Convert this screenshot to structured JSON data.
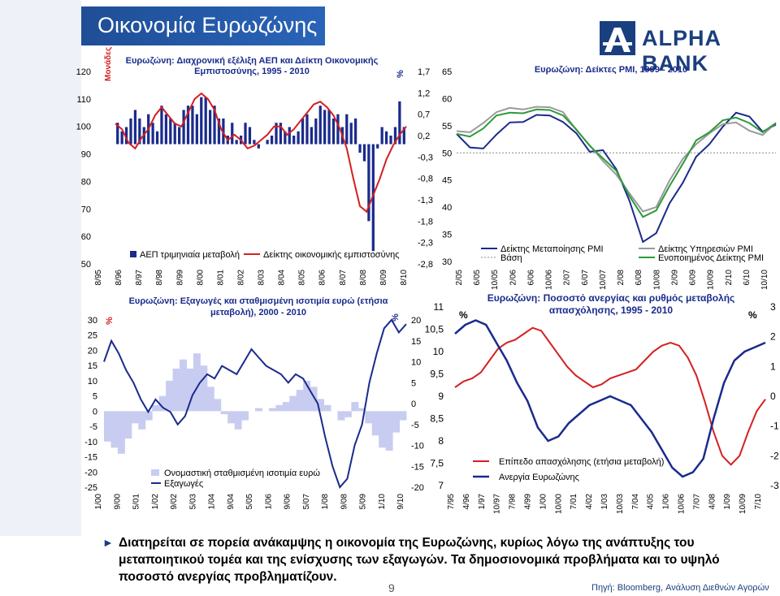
{
  "slide": {
    "title": "Οικονομία Ευρωζώνης",
    "brand": "ALPHA BANK",
    "conclusion": "Διατηρείται σε πορεία ανάκαμψης η οικονομία της Ευρωζώνης, κυρίως λόγω της ανάπτυξης του μεταποιητικού τομέα και της ενίσχυσης των εξαγωγών. Τα δημοσιονομικά προβλήματα και το υψηλό ποσοστό ανεργίας προβληματίζουν.",
    "page_number": "9",
    "source": "Πηγή: Bloomberg, Ανάλυση Διεθνών Αγορών",
    "colors": {
      "navy": "#1a2b8c",
      "red": "#d42020",
      "green": "#2e9a3a",
      "gray": "#9a9a9a",
      "title_blue": "#1f4e96"
    }
  },
  "chart_data": [
    {
      "id": "gdp",
      "type": "bar+line",
      "title": "Ευρωζώνη: Διαχρονική εξέλιξη ΑΕΠ και Δείκτη Οικονομικής Εμπιστοσύνης, 1995 - 2010",
      "left_unit": "Μονάδες",
      "right_unit": "%",
      "left_ticks": [
        "120",
        "110",
        "100",
        "90",
        "80",
        "70",
        "60",
        "50"
      ],
      "right_ticks": [
        "1,7",
        "1,2",
        "0,7",
        "0,2",
        "-0,3",
        "-0,8",
        "-1,3",
        "-1,8",
        "-2,3",
        "-2,8"
      ],
      "ylim_left": [
        50,
        120
      ],
      "ylim_right": [
        -2.8,
        1.7
      ],
      "x_labels": [
        "8/95",
        "8/96",
        "8/97",
        "8/98",
        "8/99",
        "8/00",
        "8/01",
        "8/02",
        "8/03",
        "8/04",
        "8/05",
        "8/06",
        "8/07",
        "8/08",
        "8/09",
        "8/10"
      ],
      "legend": [
        "ΑΕΠ τριμηνιαία μεταβολή",
        "Δείκτης οικονομικής εμπιστοσύνης"
      ],
      "gdp_qoq": [
        0.5,
        0.3,
        0.4,
        0.6,
        0.8,
        0.6,
        0.4,
        0.7,
        0.5,
        0.3,
        0.9,
        0.7,
        0.6,
        0.5,
        0.4,
        0.8,
        0.9,
        0.9,
        0.7,
        1.1,
        1.1,
        0.8,
        0.9,
        0.6,
        0.6,
        0.2,
        0.5,
        0.1,
        0.2,
        0.5,
        0.4,
        0.1,
        -0.1,
        0.0,
        0.1,
        0.2,
        0.5,
        0.5,
        0.3,
        0.4,
        0.2,
        0.3,
        0.6,
        0.7,
        0.4,
        0.6,
        0.9,
        0.8,
        0.8,
        0.6,
        0.7,
        0.4,
        0.7,
        0.5,
        0.6,
        -0.2,
        -0.4,
        -1.8,
        -2.5,
        -0.1,
        0.4,
        0.3,
        0.2,
        0.4,
        1.0,
        0.4
      ],
      "esi": [
        101,
        99,
        94,
        92,
        96,
        99,
        104,
        107,
        104,
        101,
        100,
        105,
        110,
        112,
        110,
        106,
        99,
        95,
        97,
        95,
        92,
        93,
        95,
        97,
        100,
        100,
        97,
        99,
        102,
        105,
        108,
        109,
        107,
        104,
        99,
        92,
        81,
        71,
        69,
        75,
        81,
        88,
        93,
        97,
        100
      ]
    },
    {
      "id": "pmi",
      "type": "line",
      "title": "Ευρωζώνη: Δείκτες PMI, 1999 - 2010",
      "ylim": [
        30,
        65
      ],
      "y_ticks": [
        "65",
        "60",
        "55",
        "50",
        "45",
        "40",
        "35",
        "30"
      ],
      "x_labels": [
        "2/05",
        "6/05",
        "10/05",
        "2/06",
        "6/06",
        "10/06",
        "2/07",
        "6/07",
        "10/07",
        "2/08",
        "6/08",
        "10/08",
        "2/09",
        "6/09",
        "10/09",
        "2/10",
        "6/10",
        "10/10"
      ],
      "legend": [
        "Δείκτης Μεταποίησης PMI",
        "Δείκτης Υπηρεσιών PMI",
        "Βάση",
        "Ενοποιημένος Δείκτης PMI"
      ],
      "series": [
        {
          "name": "Δείκτης Μεταποίησης PMI",
          "values": [
            53.5,
            51.0,
            50.8,
            53.4,
            55.6,
            55.7,
            57.0,
            56.9,
            55.7,
            53.6,
            50.2,
            50.5,
            47.0,
            41.1,
            33.6,
            35.2,
            40.7,
            44.5,
            49.3,
            51.6,
            54.8,
            57.4,
            56.7,
            53.9,
            55.2
          ]
        },
        {
          "name": "Δείκτης Υπηρεσιών PMI",
          "values": [
            54.0,
            53.8,
            55.5,
            57.5,
            58.3,
            58.0,
            58.5,
            58.4,
            57.5,
            54.2,
            51.4,
            48.5,
            46.0,
            42.5,
            39.2,
            40.0,
            44.9,
            48.9,
            51.6,
            53.6,
            55.3,
            55.6,
            54.1,
            53.3,
            55.5
          ]
        },
        {
          "name": "Ενοποιημένος Δείκτης PMI",
          "values": [
            53.5,
            53.0,
            54.5,
            56.9,
            57.4,
            57.3,
            58.0,
            57.9,
            56.9,
            54.3,
            51.3,
            49.0,
            46.7,
            42.0,
            38.2,
            39.4,
            43.9,
            48.0,
            52.3,
            53.8,
            56.0,
            56.5,
            55.5,
            53.8,
            55.5
          ]
        },
        {
          "name": "Βάση",
          "values": [
            50,
            50
          ]
        }
      ]
    },
    {
      "id": "exports",
      "type": "line",
      "title": "Ευρωζώνη: Εξαγωγές και σταθμισμένη ισοτιμία ευρώ (ετήσια μεταβολή), 2000 - 2010",
      "left_unit": "%",
      "right_unit": "%",
      "left_ticks": [
        "30",
        "25",
        "20",
        "15",
        "10",
        "5",
        "0",
        "-5",
        "-10",
        "-15",
        "-20",
        "-25"
      ],
      "right_ticks": [
        "20",
        "15",
        "10",
        "5",
        "0",
        "-5",
        "-10",
        "-15",
        "-20"
      ],
      "ylim_left": [
        -25,
        30
      ],
      "ylim_right": [
        -20,
        20
      ],
      "x_labels": [
        "1/00",
        "9/00",
        "5/01",
        "1/02",
        "9/02",
        "5/03",
        "1/04",
        "9/04",
        "5/05",
        "1/06",
        "9/06",
        "5/07",
        "1/08",
        "9/08",
        "5/09",
        "1/10",
        "9/10"
      ],
      "legend": [
        "Ονομαστική σταθμισμένη ισοτιμία ευρώ",
        "Εξαγωγές"
      ],
      "neer": [
        -10,
        -12,
        -14,
        -9,
        -4,
        -6,
        -3,
        2,
        5,
        10,
        14,
        17,
        14,
        19,
        15,
        8,
        4,
        -1,
        -4,
        -6,
        -3,
        0,
        1,
        0,
        1,
        2,
        3,
        5,
        7,
        10,
        8,
        4,
        2,
        0,
        -3,
        -2,
        3,
        1,
        -4,
        -8,
        -12,
        -13,
        -7,
        -3
      ],
      "exports": [
        10,
        15,
        12,
        8,
        5,
        1,
        -2,
        1,
        -1,
        -2,
        -5,
        -3,
        2,
        5,
        7,
        6,
        9,
        8,
        7,
        10,
        13,
        11,
        9,
        8,
        7,
        5,
        7,
        6,
        3,
        0,
        -8,
        -15,
        -20,
        -18,
        -10,
        -5,
        5,
        12,
        18,
        20,
        17,
        19
      ]
    },
    {
      "id": "labour",
      "type": "line",
      "title": "Ευρωζώνη: Ποσοστό ανεργίας και ρυθμός μεταβολής απασχόλησης, 1995 - 2010",
      "left_unit": "%",
      "right_unit": "%",
      "left_ticks": [
        "11",
        "10,5",
        "10",
        "9,5",
        "9",
        "8,5",
        "8",
        "7,5",
        "7"
      ],
      "right_ticks": [
        "3",
        "2",
        "1",
        "0",
        "-1",
        "-2",
        "-3"
      ],
      "ylim_left": [
        7,
        11
      ],
      "ylim_right": [
        -3,
        3
      ],
      "x_labels": [
        "7/95",
        "4/96",
        "1/97",
        "10/97",
        "7/98",
        "4/99",
        "1/00",
        "10/00",
        "7/01",
        "4/02",
        "1/03",
        "10/03",
        "7/04",
        "4/05",
        "1/06",
        "10/06",
        "7/07",
        "4/08",
        "1/09",
        "10/09",
        "7/10"
      ],
      "legend": [
        "Επίπεδο απασχόλησης (ετήσια μεταβολή)",
        "Ανεργία Ευρωζώνης"
      ],
      "employment": [
        0.3,
        0.5,
        0.6,
        0.8,
        1.2,
        1.6,
        1.8,
        1.9,
        2.1,
        2.3,
        2.2,
        1.8,
        1.4,
        1.0,
        0.7,
        0.5,
        0.3,
        0.4,
        0.6,
        0.7,
        0.8,
        0.9,
        1.2,
        1.5,
        1.7,
        1.8,
        1.7,
        1.3,
        0.7,
        -0.2,
        -1.2,
        -2.0,
        -2.3,
        -2.0,
        -1.2,
        -0.5,
        -0.1
      ],
      "unemployment": [
        10.4,
        10.6,
        10.7,
        10.6,
        10.2,
        9.8,
        9.3,
        8.9,
        8.3,
        8.0,
        8.1,
        8.4,
        8.6,
        8.8,
        8.9,
        9.0,
        8.9,
        8.8,
        8.5,
        8.2,
        7.8,
        7.4,
        7.2,
        7.3,
        7.6,
        8.5,
        9.3,
        9.8,
        10.0,
        10.1,
        10.2
      ]
    }
  ]
}
